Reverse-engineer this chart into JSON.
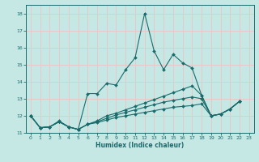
{
  "title": "",
  "xlabel": "Humidex (Indice chaleur)",
  "xlim": [
    -0.5,
    23.5
  ],
  "ylim": [
    11.0,
    18.5
  ],
  "yticks": [
    11,
    12,
    13,
    14,
    15,
    16,
    17,
    18
  ],
  "xticks": [
    0,
    1,
    2,
    3,
    4,
    5,
    6,
    7,
    8,
    9,
    10,
    11,
    12,
    13,
    14,
    15,
    16,
    17,
    18,
    19,
    20,
    21,
    22,
    23
  ],
  "background_color": "#c5e8e5",
  "grid_color": "#e8c8c8",
  "line_color": "#1a6b6b",
  "lines": [
    [
      0,
      12.0,
      1,
      11.3,
      2,
      11.35,
      3,
      11.7,
      4,
      11.35,
      5,
      11.2,
      6,
      13.3,
      7,
      13.3,
      8,
      13.9,
      9,
      13.8,
      10,
      14.7,
      11,
      15.4,
      12,
      18.0,
      13,
      15.8,
      14,
      14.7,
      15,
      15.6,
      16,
      15.1,
      17,
      14.8,
      18,
      13.2,
      19,
      12.0,
      20,
      12.1,
      21,
      12.4,
      22,
      12.85
    ],
    [
      0,
      12.0,
      1,
      11.3,
      2,
      11.35,
      3,
      11.65,
      4,
      11.35,
      5,
      11.2,
      6,
      11.5,
      7,
      11.7,
      8,
      12.0,
      9,
      12.15,
      10,
      12.35,
      11,
      12.55,
      12,
      12.75,
      13,
      12.95,
      14,
      13.15,
      15,
      13.35,
      16,
      13.55,
      17,
      13.75,
      18,
      13.2,
      19,
      12.0,
      20,
      12.1,
      21,
      12.4,
      22,
      12.85
    ],
    [
      0,
      12.0,
      1,
      11.3,
      2,
      11.35,
      3,
      11.65,
      4,
      11.35,
      5,
      11.2,
      6,
      11.5,
      7,
      11.65,
      8,
      11.85,
      9,
      12.05,
      10,
      12.2,
      11,
      12.35,
      12,
      12.5,
      13,
      12.65,
      14,
      12.8,
      15,
      12.9,
      16,
      13.0,
      17,
      13.1,
      18,
      13.0,
      19,
      12.0,
      20,
      12.1,
      21,
      12.4,
      22,
      12.85
    ],
    [
      0,
      12.0,
      1,
      11.3,
      2,
      11.35,
      3,
      11.65,
      4,
      11.35,
      5,
      11.2,
      6,
      11.5,
      7,
      11.6,
      8,
      11.75,
      9,
      11.9,
      10,
      12.0,
      11,
      12.1,
      12,
      12.2,
      13,
      12.3,
      14,
      12.4,
      15,
      12.5,
      16,
      12.55,
      17,
      12.6,
      18,
      12.7,
      19,
      12.0,
      20,
      12.1,
      21,
      12.4,
      22,
      12.85
    ]
  ]
}
